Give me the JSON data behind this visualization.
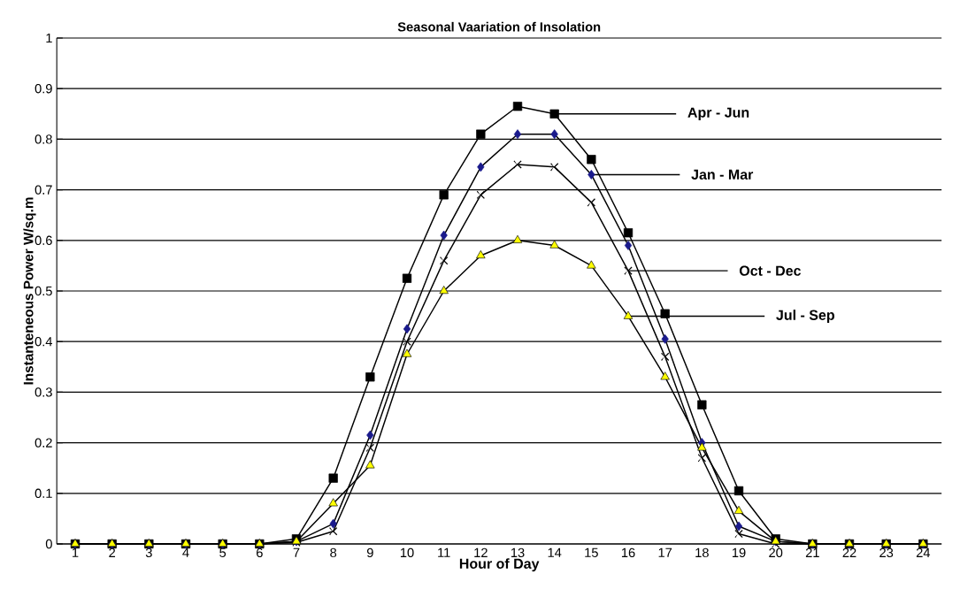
{
  "chart_data": {
    "type": "line",
    "title": "Seasonal Vaariation of Insolation",
    "xlabel": "Hour of Day",
    "ylabel": "Instanteneous Power W/sq.m",
    "categories": [
      "1",
      "2",
      "3",
      "4",
      "5",
      "6",
      "7",
      "8",
      "9",
      "10",
      "11",
      "12",
      "13",
      "14",
      "15",
      "16",
      "17",
      "18",
      "19",
      "20",
      "21",
      "22",
      "23",
      "24"
    ],
    "series": [
      {
        "color": "#000000",
        "marker": "square",
        "values": [
          0,
          0,
          0,
          0,
          0,
          0,
          0.01,
          0.13,
          0.33,
          0.525,
          0.69,
          0.81,
          0.865,
          0.85,
          0.76,
          0.615,
          0.455,
          0.275,
          0.105,
          0.01,
          0,
          0,
          0,
          0
        ]
      },
      {
        "color": "#1a1a8c",
        "marker": "diamond",
        "values": [
          0,
          0,
          0,
          0,
          0,
          0,
          0.005,
          0.04,
          0.215,
          0.425,
          0.61,
          0.745,
          0.81,
          0.81,
          0.73,
          0.59,
          0.405,
          0.2,
          0.035,
          0.005,
          0,
          0,
          0,
          0
        ]
      },
      {
        "color": "#000000",
        "marker": "cross",
        "values": [
          0,
          0,
          0,
          0,
          0,
          0,
          0.003,
          0.025,
          0.19,
          0.4,
          0.56,
          0.69,
          0.75,
          0.745,
          0.675,
          0.54,
          0.37,
          0.17,
          0.02,
          0,
          0,
          0,
          0,
          0
        ]
      },
      {
        "color": "#ffff00",
        "marker": "triangle",
        "values": [
          0,
          0,
          0,
          0,
          0,
          0,
          0.005,
          0.08,
          0.155,
          0.375,
          0.5,
          0.57,
          0.6,
          0.59,
          0.55,
          0.45,
          0.33,
          0.19,
          0.065,
          0.005,
          0,
          0,
          0,
          0
        ]
      }
    ],
    "annotations": [
      {
        "text": "Apr - Jun",
        "x": "14",
        "y": 0.85
      },
      {
        "text": "Jan - Mar",
        "x": "15",
        "y": 0.73
      },
      {
        "text": "Oct - Dec",
        "x": "16",
        "y": 0.54
      },
      {
        "text": "Jul - Sep",
        "x": "16",
        "y": 0.45
      }
    ],
    "ylim": [
      0,
      1
    ],
    "yticks": [
      0,
      0.1,
      0.2,
      0.3,
      0.4,
      0.5,
      0.6,
      0.7,
      0.8,
      0.9,
      1
    ],
    "grid": "y",
    "line_style": "solid"
  }
}
